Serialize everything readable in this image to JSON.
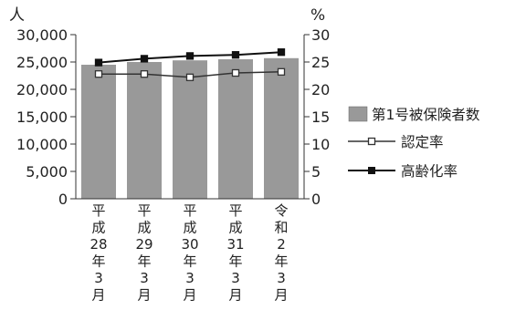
{
  "chart_data": {
    "type": "bar",
    "categories": [
      [
        "平",
        "成",
        "28",
        "年",
        "3",
        "月"
      ],
      [
        "平",
        "成",
        "29",
        "年",
        "3",
        "月"
      ],
      [
        "平",
        "成",
        "30",
        "年",
        "3",
        "月"
      ],
      [
        "平",
        "成",
        "31",
        "年",
        "3",
        "月"
      ],
      [
        "令",
        "和",
        "2",
        "年",
        "3",
        "月"
      ]
    ],
    "left_axis": {
      "unit": "人",
      "ylim": [
        0,
        30000
      ],
      "ticks": [
        0,
        5000,
        10000,
        15000,
        20000,
        25000,
        30000
      ],
      "tick_labels": [
        "0",
        "5,000",
        "10,000",
        "15,000",
        "20,000",
        "25,000",
        "30,000"
      ]
    },
    "right_axis": {
      "unit": "%",
      "ylim": [
        0,
        30
      ],
      "ticks": [
        0,
        5,
        10,
        15,
        20,
        25,
        30
      ],
      "tick_labels": [
        "0",
        "5",
        "10",
        "15",
        "20",
        "25",
        "30"
      ]
    },
    "series": [
      {
        "name": "第1号被保険者数",
        "kind": "bar",
        "axis": "left",
        "color": "#999999",
        "values": [
          24500,
          25000,
          25300,
          25500,
          25700
        ]
      },
      {
        "name": "認定率",
        "kind": "line",
        "axis": "right",
        "marker": "open-square",
        "color": "#333333",
        "values": [
          22.8,
          22.8,
          22.2,
          23.0,
          23.2
        ]
      },
      {
        "name": "高齢化率",
        "kind": "line",
        "axis": "right",
        "marker": "filled-square",
        "color": "#111111",
        "values": [
          24.9,
          25.6,
          26.1,
          26.3,
          26.8
        ]
      }
    ],
    "grid": false,
    "legend_position": "right"
  }
}
